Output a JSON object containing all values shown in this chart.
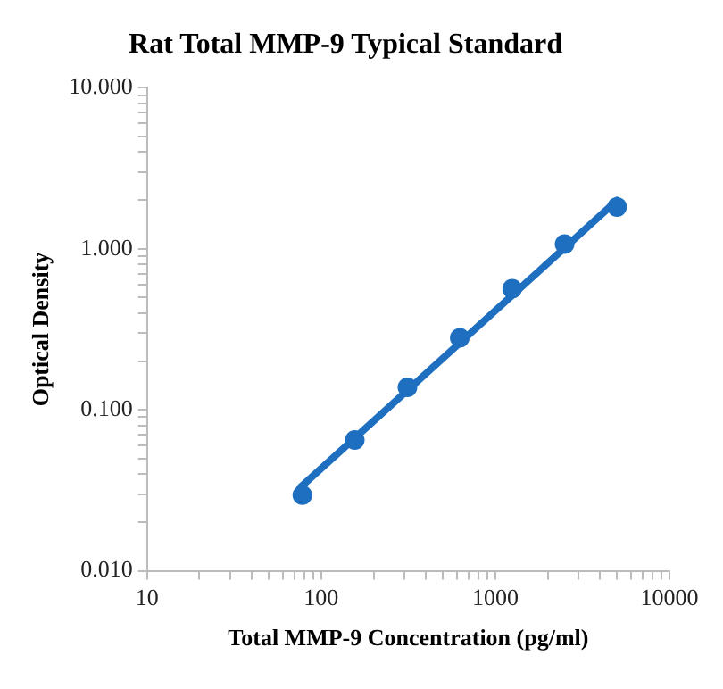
{
  "chart_data": {
    "type": "scatter",
    "title": "Rat Total MMP-9 Typical Standard",
    "xlabel": "Total MMP-9 Concentration (pg/ml)",
    "ylabel": "Optical Density",
    "log": "xy",
    "marker": "circle",
    "grid": false,
    "legend": false,
    "x": [
      78,
      156,
      313,
      625,
      1250,
      2500,
      5000
    ],
    "series": [
      {
        "color": "#1f6fc0",
        "values": [
          0.0295,
          0.065,
          0.138,
          0.28,
          0.565,
          1.07,
          1.82
        ]
      },
      {
        "type": "line",
        "marker": "none",
        "line_style": "solid",
        "color": "#1f6fc0",
        "x": [
          76,
          5000
        ],
        "values": [
          0.033,
          2.0
        ]
      }
    ],
    "xlim": [
      10,
      10000
    ],
    "ylim": [
      0.01,
      10
    ],
    "xticks": [
      10,
      {
        "value": 20,
        "label": null
      },
      {
        "value": 30,
        "label": null
      },
      {
        "value": 40,
        "label": null
      },
      {
        "value": 50,
        "label": null
      },
      {
        "value": 60,
        "label": null
      },
      {
        "value": 70,
        "label": null
      },
      {
        "value": 80,
        "label": null
      },
      {
        "value": 90,
        "label": null
      },
      100,
      {
        "value": 200,
        "label": null
      },
      {
        "value": 300,
        "label": null
      },
      {
        "value": 400,
        "label": null
      },
      {
        "value": 500,
        "label": null
      },
      {
        "value": 600,
        "label": null
      },
      {
        "value": 700,
        "label": null
      },
      {
        "value": 800,
        "label": null
      },
      {
        "value": 900,
        "label": null
      },
      1000,
      {
        "value": 2000,
        "label": null
      },
      {
        "value": 3000,
        "label": null
      },
      {
        "value": 4000,
        "label": null
      },
      {
        "value": 5000,
        "label": null
      },
      {
        "value": 6000,
        "label": null
      },
      {
        "value": 7000,
        "label": null
      },
      {
        "value": 8000,
        "label": null
      },
      {
        "value": 9000,
        "label": null
      },
      10000
    ],
    "yticks": [
      {
        "value": 0.01,
        "label": "0.010"
      },
      {
        "value": 0.02,
        "label": null
      },
      {
        "value": 0.03,
        "label": null
      },
      {
        "value": 0.04,
        "label": null
      },
      {
        "value": 0.05,
        "label": null
      },
      {
        "value": 0.06,
        "label": null
      },
      {
        "value": 0.07,
        "label": null
      },
      {
        "value": 0.08,
        "label": null
      },
      {
        "value": 0.09,
        "label": null
      },
      {
        "value": 0.1,
        "label": "0.100"
      },
      {
        "value": 0.2,
        "label": null
      },
      {
        "value": 0.3,
        "label": null
      },
      {
        "value": 0.4,
        "label": null
      },
      {
        "value": 0.5,
        "label": null
      },
      {
        "value": 0.6,
        "label": null
      },
      {
        "value": 0.7,
        "label": null
      },
      {
        "value": 0.8,
        "label": null
      },
      {
        "value": 0.9,
        "label": null
      },
      {
        "value": 1,
        "label": "1.000"
      },
      {
        "value": 2,
        "label": null
      },
      {
        "value": 3,
        "label": null
      },
      {
        "value": 4,
        "label": null
      },
      {
        "value": 5,
        "label": null
      },
      {
        "value": 6,
        "label": null
      },
      {
        "value": 7,
        "label": null
      },
      {
        "value": 8,
        "label": null
      },
      {
        "value": 9,
        "label": null
      },
      {
        "value": 10,
        "label": "10.000"
      }
    ]
  }
}
